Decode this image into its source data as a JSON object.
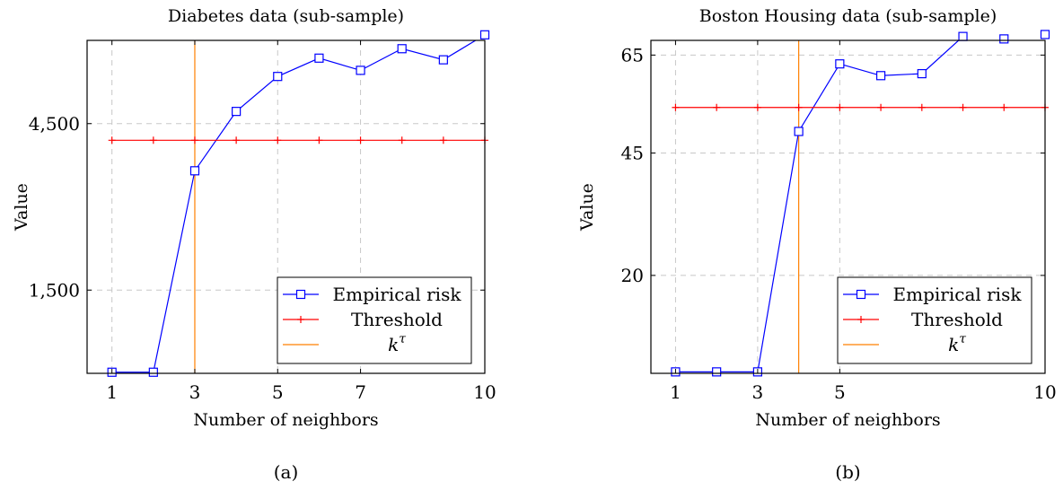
{
  "chart_data": [
    {
      "type": "line",
      "title": "Diabetes data (sub-sample)",
      "xlabel": "Number of neighbors",
      "ylabel": "Value",
      "caption": "(a)",
      "xlim": [
        0.4,
        10
      ],
      "ylim": [
        0,
        6000
      ],
      "xticks": [
        1,
        3,
        5,
        7,
        10
      ],
      "xtick_labels": [
        "1",
        "3",
        "5",
        "7",
        "10"
      ],
      "yticks": [
        1500,
        4500
      ],
      "ytick_labels": [
        "1,500",
        "4,500"
      ],
      "grid": true,
      "legend_position": "bottom-right",
      "series": [
        {
          "name": "Empirical risk",
          "color": "#0000ff",
          "marker": "square",
          "x": [
            1,
            2,
            3,
            4,
            5,
            6,
            7,
            8,
            9,
            10
          ],
          "y": [
            20,
            20,
            3650,
            4720,
            5350,
            5680,
            5460,
            5850,
            5650,
            6100
          ]
        },
        {
          "name": "Threshold",
          "color": "#ff0000",
          "marker": "plus",
          "x": [
            1,
            2,
            3,
            4,
            5,
            6,
            7,
            8,
            9,
            10
          ],
          "y": [
            4200,
            4200,
            4200,
            4200,
            4200,
            4200,
            4200,
            4200,
            4200,
            4200
          ]
        },
        {
          "name": "k^τ",
          "color": "#ff8000",
          "marker": "none",
          "vertical_x": 3
        }
      ]
    },
    {
      "type": "line",
      "title": "Boston Housing data (sub-sample)",
      "xlabel": "Number of neighbors",
      "ylabel": "Value",
      "caption": "(b)",
      "xlim": [
        0.4,
        10
      ],
      "ylim": [
        0,
        68
      ],
      "xticks": [
        1,
        3,
        5,
        10
      ],
      "xtick_labels": [
        "1",
        "3",
        "5",
        "10"
      ],
      "yticks": [
        20,
        45,
        65
      ],
      "ytick_labels": [
        "20",
        "45",
        "65"
      ],
      "grid": true,
      "legend_position": "bottom-right",
      "series": [
        {
          "name": "Empirical risk",
          "color": "#0000ff",
          "marker": "square",
          "x": [
            1,
            2,
            3,
            4,
            5,
            6,
            7,
            8,
            9,
            10
          ],
          "y": [
            0.3,
            0.3,
            0.3,
            49.4,
            63.2,
            60.8,
            61.2,
            68.8,
            68.3,
            69.2
          ]
        },
        {
          "name": "Threshold",
          "color": "#ff0000",
          "marker": "plus",
          "x": [
            1,
            2,
            3,
            4,
            5,
            6,
            7,
            8,
            9,
            10
          ],
          "y": [
            54.3,
            54.3,
            54.3,
            54.3,
            54.3,
            54.3,
            54.3,
            54.3,
            54.3,
            54.3
          ]
        },
        {
          "name": "k^τ",
          "color": "#ff8000",
          "marker": "none",
          "vertical_x": 4
        }
      ]
    }
  ]
}
